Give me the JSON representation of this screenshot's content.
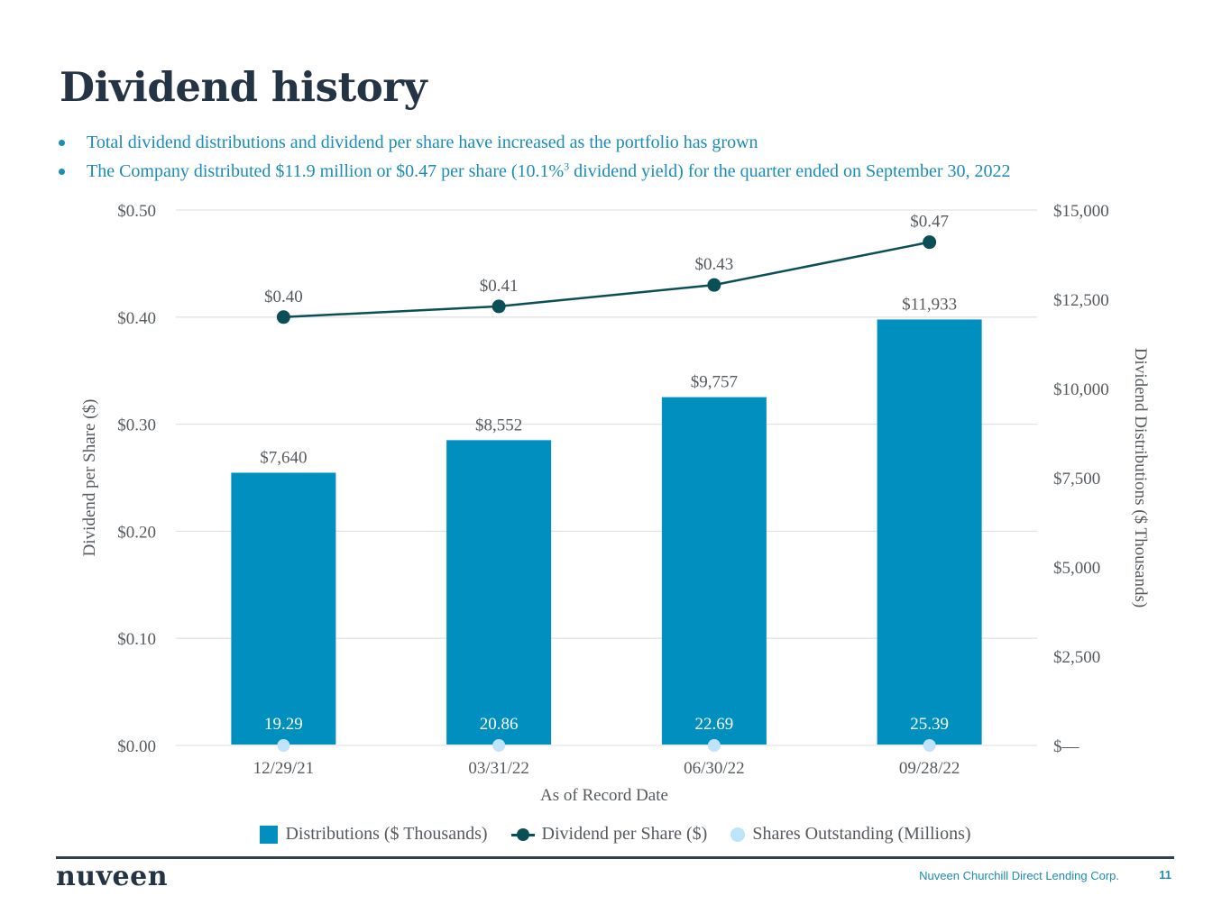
{
  "page": {
    "title": "Dividend history",
    "bullets": [
      {
        "text": "Total dividend distributions and dividend per share have increased as the portfolio has grown"
      },
      {
        "text_before": "The Company distributed $11.9 million or $0.47 per share (10.1%",
        "superscript": "3",
        "text_after": " dividend yield) for the quarter ended on September 30, 2022"
      }
    ]
  },
  "legend": {
    "bars": "Distributions ($ Thousands)",
    "line": "Dividend per Share ($)",
    "dots": "Shares Outstanding (Millions)"
  },
  "footer": {
    "logo": "nuveen",
    "company": "Nuveen Churchill Direct Lending Corp.",
    "page_number": "11"
  },
  "colors": {
    "bar": "#008fbf",
    "line": "#0b4f56",
    "dots": "#bfe3fa",
    "title": "#243444",
    "accent": "#1b8bb8",
    "grid": "#e3e3e3"
  },
  "chart_data": {
    "type": "bar",
    "title": "",
    "xlabel": "As of Record Date",
    "ylabel": "Dividend per Share ($)",
    "y2label": "Dividend Distributions ($ Thousands)",
    "categories": [
      "12/29/21",
      "03/31/22",
      "06/30/22",
      "09/28/22"
    ],
    "ylim": [
      0,
      0.5
    ],
    "y_ticks": [
      "$0.00",
      "$0.10",
      "$0.20",
      "$0.30",
      "$0.40",
      "$0.50"
    ],
    "y2lim": [
      0,
      15000
    ],
    "y2_ticks": [
      "$—",
      "$2,500",
      "$5,000",
      "$7,500",
      "$10,000",
      "$12,500",
      "$15,000"
    ],
    "grid": true,
    "legend_position": "bottom",
    "series": [
      {
        "name": "Distributions ($ Thousands)",
        "type": "bar",
        "axis": "right",
        "values": [
          7640,
          8552,
          9757,
          11933
        ],
        "labels": [
          "$7,640",
          "$8,552",
          "$9,757",
          "$11,933"
        ]
      },
      {
        "name": "Dividend per Share ($)",
        "type": "line",
        "axis": "left",
        "values": [
          0.4,
          0.41,
          0.43,
          0.47
        ],
        "labels": [
          "$0.40",
          "$0.41",
          "$0.43",
          "$0.47"
        ]
      },
      {
        "name": "Shares Outstanding (Millions)",
        "type": "scatter",
        "axis": "none",
        "values": [
          19.29,
          20.86,
          22.69,
          25.39
        ],
        "labels": [
          "19.29",
          "20.86",
          "22.69",
          "25.39"
        ]
      }
    ]
  }
}
